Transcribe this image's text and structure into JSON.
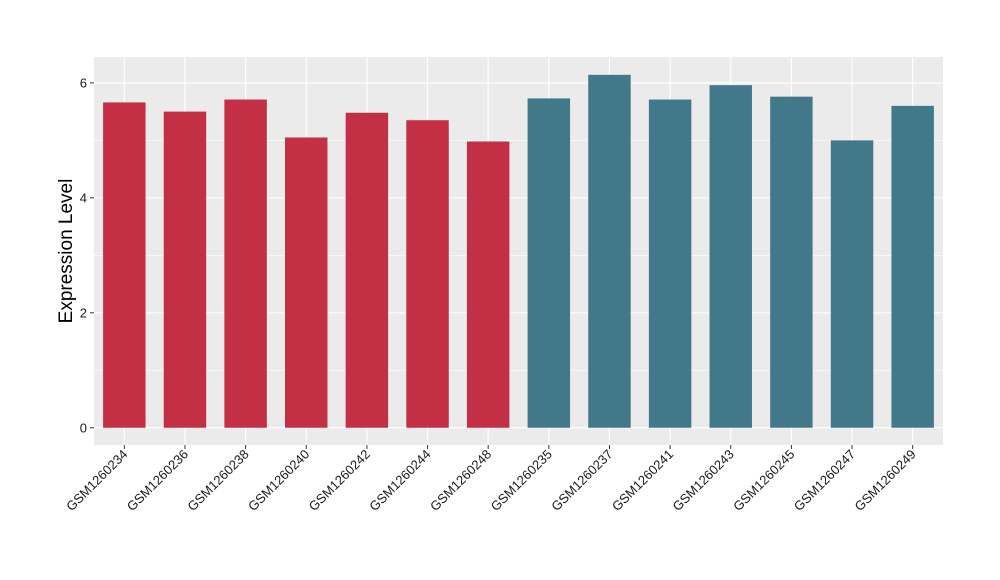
{
  "chart_data": {
    "type": "bar",
    "title": "",
    "xlabel": "",
    "ylabel": "Expression Level",
    "ylim": [
      -0.3,
      6.45
    ],
    "yticks": [
      0,
      2,
      4,
      6
    ],
    "grid": true,
    "categories": [
      "GSM1260234",
      "GSM1260236",
      "GSM1260238",
      "GSM1260240",
      "GSM1260242",
      "GSM1260244",
      "GSM1260248",
      "GSM1260235",
      "GSM1260237",
      "GSM1260241",
      "GSM1260243",
      "GSM1260245",
      "GSM1260247",
      "GSM1260249"
    ],
    "values": [
      5.66,
      5.5,
      5.71,
      5.05,
      5.48,
      5.35,
      4.98,
      5.73,
      6.14,
      5.71,
      5.96,
      5.76,
      5.0,
      5.6
    ],
    "groups": [
      {
        "color": "#c33046",
        "categories": [
          "GSM1260234",
          "GSM1260236",
          "GSM1260238",
          "GSM1260240",
          "GSM1260242",
          "GSM1260244",
          "GSM1260248"
        ]
      },
      {
        "color": "#42798a",
        "categories": [
          "GSM1260235",
          "GSM1260237",
          "GSM1260241",
          "GSM1260243",
          "GSM1260245",
          "GSM1260247",
          "GSM1260249"
        ]
      }
    ],
    "panel_background": "#ebebeb",
    "gridline_color": "#ffffff"
  }
}
